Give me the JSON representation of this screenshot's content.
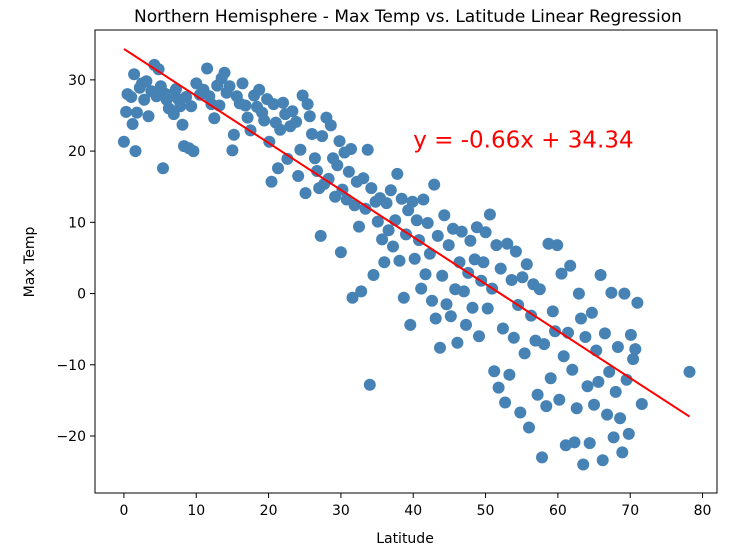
{
  "chart_data": {
    "type": "scatter",
    "title": "Northern Hemisphere - Max Temp vs. Latitude Linear Regression",
    "xlabel": "Latitude",
    "ylabel": "Max Temp",
    "xlim": [
      -4,
      82
    ],
    "ylim": [
      -28,
      37
    ],
    "xticks": [
      0,
      10,
      20,
      30,
      40,
      50,
      60,
      70,
      80
    ],
    "yticks": [
      -20,
      -10,
      0,
      10,
      20,
      30
    ],
    "ytick_labels": [
      "−20",
      "−10",
      "0",
      "10",
      "20",
      "30"
    ],
    "grid": false,
    "point_color": "#4682b4",
    "regression": {
      "slope": -0.66,
      "intercept": 34.34,
      "x_range": [
        0,
        78.2
      ],
      "color": "#ff0000",
      "equation_text": "y = -0.66x + 34.34",
      "equation_position": [
        40,
        20.5
      ]
    },
    "points": [
      [
        0,
        21.3
      ],
      [
        0.3,
        25.5
      ],
      [
        0.5,
        28.0
      ],
      [
        1,
        27.6
      ],
      [
        1.2,
        23.8
      ],
      [
        1.4,
        30.8
      ],
      [
        1.6,
        20.0
      ],
      [
        1.8,
        25.4
      ],
      [
        2.2,
        28.9
      ],
      [
        2.5,
        29.5
      ],
      [
        2.8,
        27.2
      ],
      [
        3.1,
        29.8
      ],
      [
        3.4,
        24.9
      ],
      [
        3.8,
        28.4
      ],
      [
        4.2,
        32.1
      ],
      [
        4.5,
        27.7
      ],
      [
        4.8,
        31.5
      ],
      [
        5.1,
        29.1
      ],
      [
        5.4,
        17.6
      ],
      [
        5.6,
        28.1
      ],
      [
        5.9,
        27.2
      ],
      [
        6.2,
        26.0
      ],
      [
        6.5,
        27.9
      ],
      [
        6.9,
        25.2
      ],
      [
        7.2,
        28.7
      ],
      [
        7.5,
        27.3
      ],
      [
        7.8,
        26.3
      ],
      [
        8.1,
        23.7
      ],
      [
        8.3,
        20.7
      ],
      [
        8.6,
        27.6
      ],
      [
        9,
        20.4
      ],
      [
        9.3,
        26.3
      ],
      [
        9.6,
        20.0
      ],
      [
        10,
        29.5
      ],
      [
        10.5,
        27.9
      ],
      [
        11,
        28.6
      ],
      [
        11.5,
        31.6
      ],
      [
        11.8,
        27.7
      ],
      [
        12.1,
        26.6
      ],
      [
        12.5,
        24.6
      ],
      [
        12.9,
        29.2
      ],
      [
        13.2,
        26.4
      ],
      [
        13.5,
        30.2
      ],
      [
        13.9,
        31.0
      ],
      [
        14.2,
        28.2
      ],
      [
        14.6,
        29.1
      ],
      [
        15,
        20.1
      ],
      [
        15.2,
        22.3
      ],
      [
        15.6,
        27.7
      ],
      [
        16,
        26.7
      ],
      [
        16.4,
        29.5
      ],
      [
        16.8,
        26.4
      ],
      [
        17.1,
        24.7
      ],
      [
        17.5,
        22.9
      ],
      [
        18,
        27.8
      ],
      [
        18.4,
        26.2
      ],
      [
        18.7,
        28.6
      ],
      [
        19.1,
        25.4
      ],
      [
        19.4,
        24.3
      ],
      [
        19.8,
        27.3
      ],
      [
        20.1,
        21.3
      ],
      [
        20.4,
        15.7
      ],
      [
        20.7,
        26.6
      ],
      [
        21,
        24.0
      ],
      [
        21.3,
        17.6
      ],
      [
        21.6,
        23.0
      ],
      [
        22,
        26.8
      ],
      [
        22.3,
        25.2
      ],
      [
        22.6,
        18.9
      ],
      [
        23,
        23.5
      ],
      [
        23.3,
        25.6
      ],
      [
        23.8,
        24.1
      ],
      [
        24.1,
        16.5
      ],
      [
        24.4,
        20.2
      ],
      [
        24.7,
        27.8
      ],
      [
        25.1,
        14.1
      ],
      [
        25.4,
        26.6
      ],
      [
        25.7,
        24.9
      ],
      [
        26,
        22.4
      ],
      [
        26.4,
        19.0
      ],
      [
        26.7,
        17.2
      ],
      [
        27,
        14.8
      ],
      [
        27.2,
        8.1
      ],
      [
        27.4,
        22.1
      ],
      [
        27.7,
        15.4
      ],
      [
        28,
        24.7
      ],
      [
        28.3,
        16.1
      ],
      [
        28.6,
        23.6
      ],
      [
        28.9,
        19.0
      ],
      [
        29.2,
        13.6
      ],
      [
        29.5,
        18.0
      ],
      [
        29.8,
        21.4
      ],
      [
        30,
        5.8
      ],
      [
        30.2,
        14.6
      ],
      [
        30.5,
        19.8
      ],
      [
        30.8,
        13.2
      ],
      [
        31.1,
        17.1
      ],
      [
        31.4,
        20.3
      ],
      [
        31.6,
        -0.6
      ],
      [
        31.9,
        12.4
      ],
      [
        32.2,
        15.7
      ],
      [
        32.5,
        9.4
      ],
      [
        32.8,
        0.3
      ],
      [
        33.1,
        16.2
      ],
      [
        33.4,
        11.9
      ],
      [
        33.7,
        20.2
      ],
      [
        34,
        -12.8
      ],
      [
        34.2,
        14.8
      ],
      [
        34.5,
        2.6
      ],
      [
        34.8,
        12.9
      ],
      [
        35.1,
        10.1
      ],
      [
        35.4,
        13.4
      ],
      [
        35.7,
        7.6
      ],
      [
        36,
        4.4
      ],
      [
        36.3,
        12.7
      ],
      [
        36.6,
        8.9
      ],
      [
        36.9,
        14.5
      ],
      [
        37.2,
        6.6
      ],
      [
        37.5,
        10.3
      ],
      [
        37.8,
        16.8
      ],
      [
        38.1,
        4.6
      ],
      [
        38.4,
        13.3
      ],
      [
        38.7,
        -0.6
      ],
      [
        39,
        8.3
      ],
      [
        39.3,
        11.7
      ],
      [
        39.6,
        -4.4
      ],
      [
        39.9,
        12.9
      ],
      [
        40.2,
        4.9
      ],
      [
        40.5,
        10.3
      ],
      [
        40.8,
        7.5
      ],
      [
        41.1,
        0.7
      ],
      [
        41.4,
        13.2
      ],
      [
        41.7,
        2.7
      ],
      [
        42,
        9.9
      ],
      [
        42.3,
        5.6
      ],
      [
        42.6,
        -1.0
      ],
      [
        42.9,
        15.3
      ],
      [
        43.1,
        -3.5
      ],
      [
        43.4,
        8.1
      ],
      [
        43.7,
        -7.6
      ],
      [
        44,
        2.5
      ],
      [
        44.3,
        11.0
      ],
      [
        44.6,
        -1.5
      ],
      [
        44.9,
        6.8
      ],
      [
        45.2,
        -3.2
      ],
      [
        45.5,
        9.1
      ],
      [
        45.8,
        0.6
      ],
      [
        46.1,
        -6.9
      ],
      [
        46.4,
        4.4
      ],
      [
        46.7,
        8.7
      ],
      [
        47,
        0.3
      ],
      [
        47.3,
        -4.4
      ],
      [
        47.6,
        2.9
      ],
      [
        47.9,
        7.4
      ],
      [
        48.2,
        -2.0
      ],
      [
        48.5,
        4.8
      ],
      [
        48.8,
        9.3
      ],
      [
        49.1,
        -6.0
      ],
      [
        49.4,
        1.8
      ],
      [
        49.7,
        4.4
      ],
      [
        50,
        8.6
      ],
      [
        50.3,
        -2.1
      ],
      [
        50.6,
        11.1
      ],
      [
        50.9,
        0.7
      ],
      [
        51.2,
        -10.9
      ],
      [
        51.5,
        6.8
      ],
      [
        51.8,
        -13.2
      ],
      [
        52.1,
        3.5
      ],
      [
        52.4,
        -4.9
      ],
      [
        52.7,
        -15.3
      ],
      [
        53,
        7.0
      ],
      [
        53.3,
        -11.4
      ],
      [
        53.6,
        1.9
      ],
      [
        53.9,
        -6.2
      ],
      [
        54.2,
        5.9
      ],
      [
        54.5,
        -1.6
      ],
      [
        54.8,
        -16.7
      ],
      [
        55.1,
        2.3
      ],
      [
        55.4,
        -8.4
      ],
      [
        55.7,
        4.1
      ],
      [
        56,
        -18.8
      ],
      [
        56.3,
        -3.1
      ],
      [
        56.6,
        1.3
      ],
      [
        56.9,
        -6.6
      ],
      [
        57.2,
        -14.2
      ],
      [
        57.5,
        0.6
      ],
      [
        57.8,
        -23.0
      ],
      [
        58.1,
        -7.1
      ],
      [
        58.4,
        -15.8
      ],
      [
        58.7,
        7.0
      ],
      [
        59,
        -11.9
      ],
      [
        59.3,
        -2.5
      ],
      [
        59.6,
        -5.3
      ],
      [
        59.9,
        6.8
      ],
      [
        60.2,
        -14.9
      ],
      [
        60.5,
        2.8
      ],
      [
        60.8,
        -8.8
      ],
      [
        61.1,
        -21.3
      ],
      [
        61.4,
        -5.5
      ],
      [
        61.7,
        3.9
      ],
      [
        62,
        -10.7
      ],
      [
        62.3,
        -20.9
      ],
      [
        62.6,
        -16.1
      ],
      [
        62.9,
        0.0
      ],
      [
        63.2,
        -3.5
      ],
      [
        63.5,
        -24.0
      ],
      [
        63.8,
        -6.1
      ],
      [
        64.1,
        -13.0
      ],
      [
        64.4,
        -21.0
      ],
      [
        64.7,
        -2.7
      ],
      [
        65,
        -15.6
      ],
      [
        65.3,
        -8.0
      ],
      [
        65.6,
        -12.4
      ],
      [
        65.9,
        2.6
      ],
      [
        66.2,
        -23.4
      ],
      [
        66.5,
        -5.6
      ],
      [
        66.8,
        -17.0
      ],
      [
        67.1,
        -11.0
      ],
      [
        67.4,
        0.1
      ],
      [
        67.7,
        -20.2
      ],
      [
        68,
        -13.8
      ],
      [
        68.3,
        -7.5
      ],
      [
        68.6,
        -17.5
      ],
      [
        68.9,
        -22.3
      ],
      [
        69.2,
        0.0
      ],
      [
        69.5,
        -12.1
      ],
      [
        69.8,
        -19.7
      ],
      [
        70.1,
        -5.8
      ],
      [
        70.4,
        -9.2
      ],
      [
        70.7,
        -7.8
      ],
      [
        71,
        -1.3
      ],
      [
        71.6,
        -15.5
      ],
      [
        78.2,
        -11.0
      ]
    ]
  }
}
